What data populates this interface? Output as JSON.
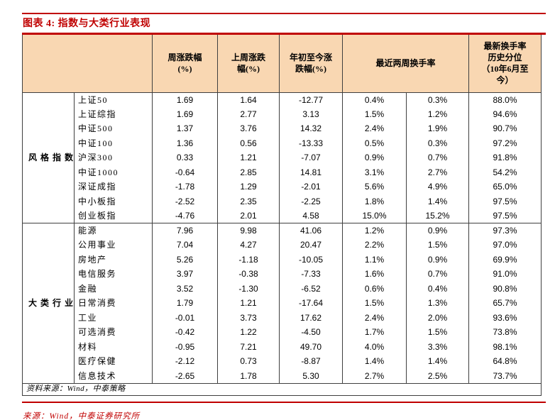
{
  "title": "图表 4: 指数与大类行业表现",
  "colors": {
    "accent_red": "#C00000",
    "header_bg": "#F9D7B2",
    "border_dark": "#3F3F3F"
  },
  "table": {
    "col_headers": [
      "周涨跌幅\n(%)",
      "上周涨跌\n幅(%)",
      "年初至今涨\n跌幅(%)",
      "最近两周换手率",
      "最新换手率\n历史分位\n（10年6月至\n今）"
    ],
    "sections": [
      {
        "label": "风格指数",
        "rows": [
          [
            "上证50",
            "1.69",
            "1.64",
            "-12.77",
            "0.4%",
            "0.3%",
            "88.0%"
          ],
          [
            "上证综指",
            "1.69",
            "2.77",
            "3.13",
            "1.5%",
            "1.2%",
            "94.6%"
          ],
          [
            "中证500",
            "1.37",
            "3.76",
            "14.32",
            "2.4%",
            "1.9%",
            "90.7%"
          ],
          [
            "中证100",
            "1.36",
            "0.56",
            "-13.33",
            "0.5%",
            "0.3%",
            "97.2%"
          ],
          [
            "沪深300",
            "0.33",
            "1.21",
            "-7.07",
            "0.9%",
            "0.7%",
            "91.8%"
          ],
          [
            "中证1000",
            "-0.64",
            "2.85",
            "14.81",
            "3.1%",
            "2.7%",
            "54.2%"
          ],
          [
            "深证成指",
            "-1.78",
            "1.29",
            "-2.01",
            "5.6%",
            "4.9%",
            "65.0%"
          ],
          [
            "中小板指",
            "-2.52",
            "2.35",
            "-2.25",
            "1.8%",
            "1.4%",
            "97.5%"
          ],
          [
            "创业板指",
            "-4.76",
            "2.01",
            "4.58",
            "15.0%",
            "15.2%",
            "97.5%"
          ]
        ]
      },
      {
        "label": "大类行业",
        "rows": [
          [
            "能源",
            "7.96",
            "9.98",
            "41.06",
            "1.2%",
            "0.9%",
            "97.3%"
          ],
          [
            "公用事业",
            "7.04",
            "4.27",
            "20.47",
            "2.2%",
            "1.5%",
            "97.0%"
          ],
          [
            "房地产",
            "5.26",
            "-1.18",
            "-10.05",
            "1.1%",
            "0.9%",
            "69.9%"
          ],
          [
            "电信服务",
            "3.97",
            "-0.38",
            "-7.33",
            "1.6%",
            "0.7%",
            "91.0%"
          ],
          [
            "金融",
            "3.52",
            "-1.30",
            "-6.52",
            "0.6%",
            "0.4%",
            "90.8%"
          ],
          [
            "日常消费",
            "1.79",
            "1.21",
            "-17.64",
            "1.5%",
            "1.3%",
            "65.7%"
          ],
          [
            "工业",
            "-0.01",
            "3.73",
            "17.62",
            "2.4%",
            "2.0%",
            "93.6%"
          ],
          [
            "可选消费",
            "-0.42",
            "1.22",
            "-4.50",
            "1.7%",
            "1.5%",
            "73.8%"
          ],
          [
            "材料",
            "-0.95",
            "7.21",
            "49.70",
            "4.0%",
            "3.3%",
            "98.1%"
          ],
          [
            "医疗保健",
            "-2.12",
            "0.73",
            "-8.87",
            "1.4%",
            "1.4%",
            "64.8%"
          ],
          [
            "信息技术",
            "-2.65",
            "1.78",
            "5.30",
            "2.7%",
            "2.5%",
            "73.7%"
          ]
        ]
      }
    ],
    "footer_note": "资料来源：Wind，中泰策略"
  },
  "source_note": "来源：Wind，中泰证券研究所"
}
